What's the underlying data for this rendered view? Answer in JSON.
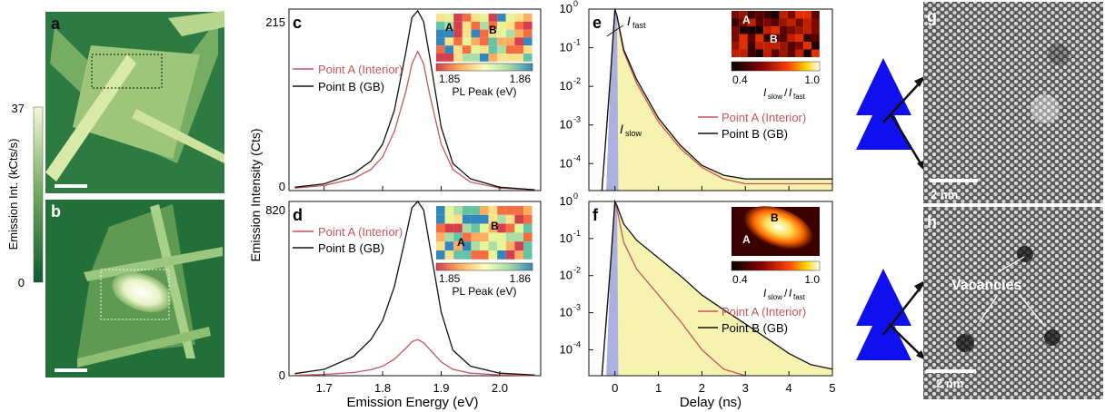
{
  "panel_letters": [
    "a",
    "b",
    "c",
    "d",
    "e",
    "f",
    "g",
    "h"
  ],
  "colorbar": {
    "max": "37",
    "min": "0",
    "label": "Emission Int. (kCts/s)"
  },
  "spectra": {
    "c": {
      "ytop": "215",
      "ybottom": "0"
    },
    "d": {
      "ytop": "820",
      "ybottom": "0"
    },
    "xlabel": "Emission Energy (eV)",
    "ylabel": "Emission Intensity (Cts)",
    "xticks": [
      "1.7",
      "1.8",
      "1.9",
      "2.0"
    ],
    "legend": [
      "Point A (Interior)",
      "Point B (GB)"
    ],
    "inset": {
      "label_a": "A",
      "label_b": "B",
      "min": "1.85",
      "max": "1.86",
      "title": "PL Peak (eV)"
    }
  },
  "decay": {
    "yticks": [
      "10",
      "10",
      "10",
      "10",
      "10"
    ],
    "yexp": [
      "0",
      "-1",
      "-2",
      "-3",
      "-4"
    ],
    "xticks": [
      "0",
      "1",
      "2",
      "3",
      "4",
      "5"
    ],
    "xlabel": "Delay (ns)",
    "legend": [
      "Point A (Interior)",
      "Point B (GB)"
    ],
    "i_fast": "I",
    "i_fast_sub": "fast",
    "i_slow": "I",
    "i_slow_sub": "slow",
    "inset": {
      "label_a": "A",
      "label_b": "B",
      "min": "0.4",
      "max": "1.0"
    }
  },
  "stem": {
    "scale": "2 nm",
    "vacancies": "Vacancies"
  },
  "colors": {
    "pointA": "#c8555a",
    "pointB": "#111111",
    "green_dark": "#1f6b3a",
    "green_light": "#eef7c8",
    "fast_fill": "#aab0e0",
    "slow_fill": "#f6f3b0",
    "triangle": "#1010ee"
  },
  "chart_data": [
    {
      "type": "line",
      "panel": "c",
      "xlabel": "Emission Energy (eV)",
      "ylabel": "Emission Intensity (Cts)",
      "xlim": [
        1.64,
        2.07
      ],
      "ylim": [
        0,
        215
      ],
      "series": [
        {
          "name": "Point A (Interior)",
          "x": [
            1.65,
            1.7,
            1.75,
            1.78,
            1.8,
            1.82,
            1.84,
            1.85,
            1.86,
            1.87,
            1.88,
            1.9,
            1.92,
            1.95,
            2.0,
            2.06
          ],
          "y": [
            3,
            6,
            14,
            25,
            40,
            70,
            118,
            150,
            165,
            150,
            115,
            55,
            25,
            10,
            3,
            1
          ]
        },
        {
          "name": "Point B (GB)",
          "x": [
            1.65,
            1.7,
            1.75,
            1.78,
            1.8,
            1.82,
            1.84,
            1.85,
            1.86,
            1.87,
            1.88,
            1.9,
            1.92,
            1.95,
            2.0,
            2.06
          ],
          "y": [
            4,
            8,
            20,
            35,
            55,
            95,
            165,
            205,
            213,
            200,
            160,
            75,
            32,
            14,
            4,
            1
          ]
        }
      ]
    },
    {
      "type": "line",
      "panel": "d",
      "xlabel": "Emission Energy (eV)",
      "ylabel": "Emission Intensity (Cts)",
      "xlim": [
        1.64,
        2.07
      ],
      "ylim": [
        0,
        820
      ],
      "series": [
        {
          "name": "Point A (Interior)",
          "x": [
            1.65,
            1.7,
            1.75,
            1.78,
            1.8,
            1.82,
            1.84,
            1.85,
            1.86,
            1.87,
            1.88,
            1.9,
            1.92,
            1.95,
            2.0,
            2.06
          ],
          "y": [
            2,
            6,
            15,
            28,
            45,
            78,
            130,
            160,
            170,
            155,
            125,
            65,
            30,
            12,
            4,
            1
          ]
        },
        {
          "name": "Point B (GB)",
          "x": [
            1.65,
            1.7,
            1.75,
            1.78,
            1.8,
            1.82,
            1.84,
            1.85,
            1.86,
            1.87,
            1.88,
            1.9,
            1.92,
            1.95,
            2.0,
            2.06
          ],
          "y": [
            10,
            30,
            90,
            170,
            260,
            420,
            660,
            790,
            820,
            780,
            620,
            300,
            120,
            45,
            12,
            3
          ]
        }
      ]
    },
    {
      "type": "line",
      "panel": "e",
      "xlabel": "Delay (ns)",
      "yscale": "log",
      "xlim": [
        -0.6,
        5
      ],
      "ylim": [
        2e-05,
        1
      ],
      "series": [
        {
          "name": "Point A (Interior)",
          "x": [
            -0.3,
            -0.1,
            0.0,
            0.05,
            0.2,
            0.5,
            1.0,
            1.5,
            2.0,
            2.5,
            3.0,
            3.5,
            4.0,
            4.5,
            5.0
          ],
          "y": [
            2e-05,
            0.02,
            1,
            0.6,
            0.08,
            0.012,
            0.0012,
            0.00025,
            8e-05,
            4e-05,
            3e-05,
            3e-05,
            3e-05,
            3e-05,
            3e-05
          ]
        },
        {
          "name": "Point B (GB)",
          "x": [
            -0.3,
            -0.1,
            0.0,
            0.05,
            0.2,
            0.5,
            1.0,
            1.5,
            2.0,
            2.5,
            3.0,
            3.5,
            4.0,
            4.5,
            5.0
          ],
          "y": [
            2e-05,
            0.02,
            1,
            0.65,
            0.09,
            0.015,
            0.0015,
            0.0003,
            9e-05,
            5e-05,
            4e-05,
            4e-05,
            4e-05,
            4e-05,
            4e-05
          ]
        }
      ]
    },
    {
      "type": "line",
      "panel": "f",
      "xlabel": "Delay (ns)",
      "yscale": "log",
      "xlim": [
        -0.6,
        5
      ],
      "ylim": [
        2e-05,
        1
      ],
      "series": [
        {
          "name": "Point A (Interior)",
          "x": [
            -0.3,
            -0.1,
            0.0,
            0.05,
            0.2,
            0.5,
            1.0,
            1.5,
            2.0,
            2.5,
            3.0
          ],
          "y": [
            2e-05,
            0.02,
            1,
            0.6,
            0.08,
            0.015,
            0.003,
            0.0006,
            0.0001,
            3e-05,
            2e-05
          ]
        },
        {
          "name": "Point B (GB)",
          "x": [
            -0.3,
            -0.1,
            0.0,
            0.05,
            0.2,
            0.5,
            1.0,
            1.5,
            2.0,
            2.5,
            3.0,
            3.5,
            4.0,
            4.5,
            5.0
          ],
          "y": [
            2e-05,
            0.02,
            1,
            0.75,
            0.25,
            0.09,
            0.03,
            0.01,
            0.003,
            0.0012,
            0.0005,
            0.0002,
            8e-05,
            4e-05,
            3e-05
          ]
        }
      ]
    }
  ]
}
